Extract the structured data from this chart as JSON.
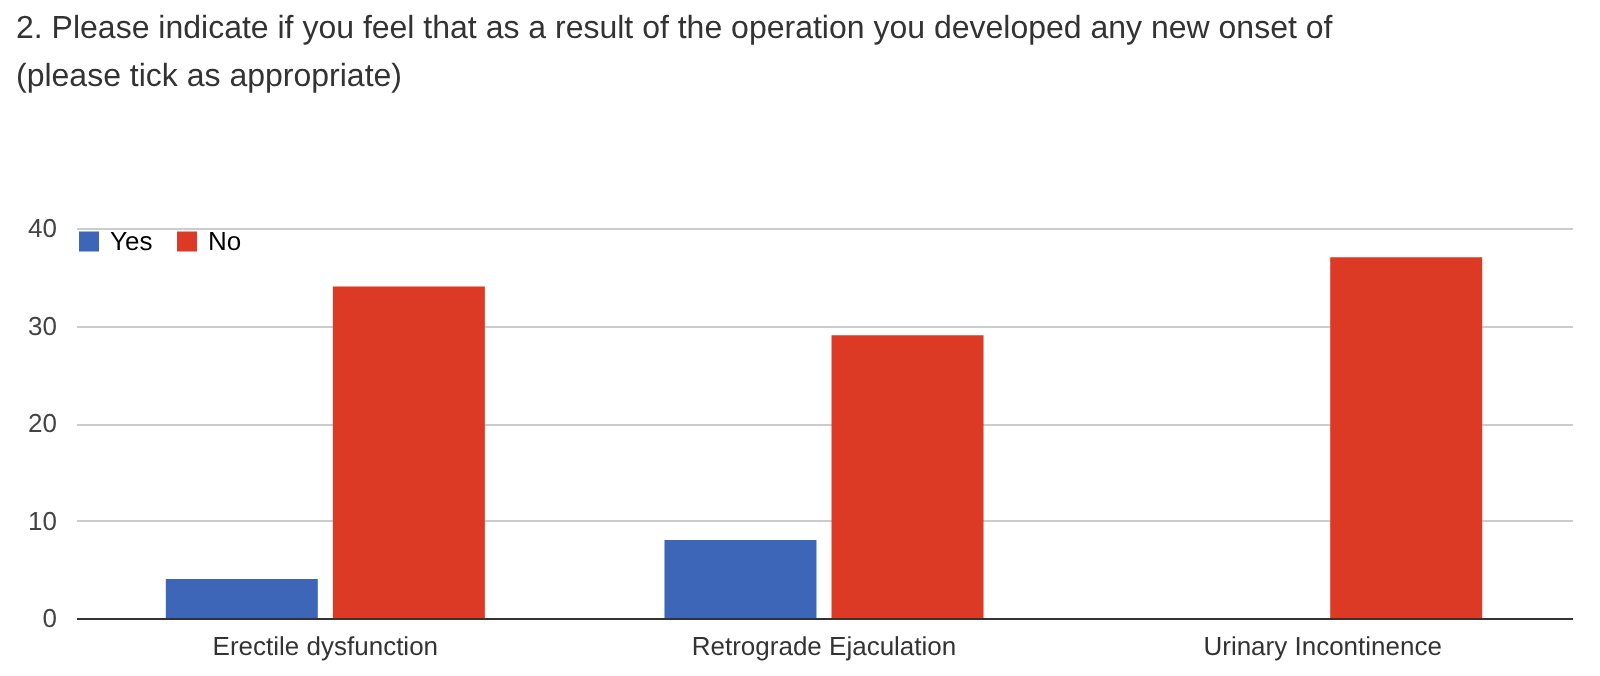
{
  "chart_data": {
    "type": "bar",
    "title": [
      "2. Please indicate if you feel that as a result of the operation you developed any new onset of",
      "(please tick as appropriate)"
    ],
    "categories": [
      "Erectile dysfunction",
      "Retrograde Ejaculation",
      "Urinary Incontinence"
    ],
    "series": [
      {
        "name": "Yes",
        "color": "#3d66b8",
        "values": [
          4,
          8,
          0
        ]
      },
      {
        "name": "No",
        "color": "#dd3a26",
        "values": [
          34,
          29,
          37
        ]
      }
    ],
    "ylim": [
      0,
      40
    ],
    "yticks": [
      0,
      10,
      20,
      30,
      40
    ],
    "grid": "y",
    "legend": "top left"
  }
}
